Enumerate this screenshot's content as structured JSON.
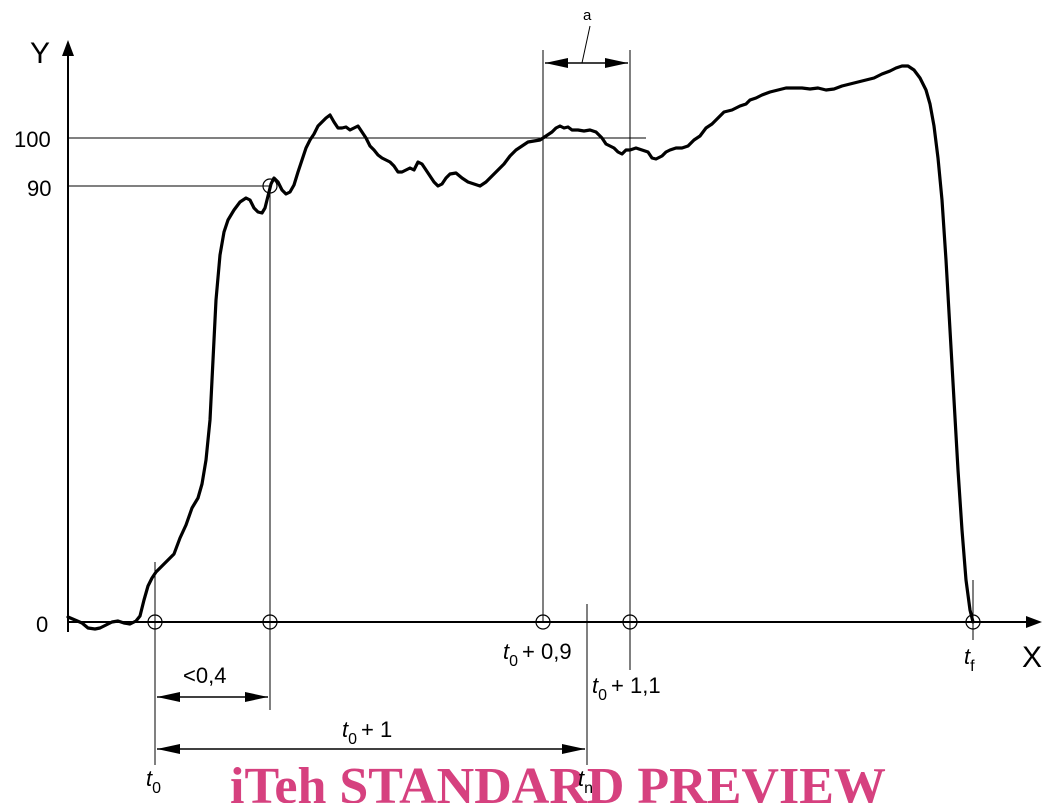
{
  "axes": {
    "y_label": "Y",
    "x_label": "X",
    "y_ticks": [
      "0",
      "90",
      "100"
    ]
  },
  "annotations": {
    "a": "a",
    "lt_0_4": "<0,4",
    "t0_plus_1": "+ 1",
    "t0_plus_0_9": "+ 0,9",
    "t0_plus_1_1": "+ 1,1"
  },
  "time_labels": {
    "t": "t",
    "sub_0": "0",
    "sub_n": "n",
    "sub_f": "f"
  },
  "watermark": "iTeh STANDARD PREVIEW",
  "colors": {
    "ink": "#000000",
    "watermark": "#d6417f",
    "background": "#ffffff"
  },
  "curve": {
    "description_points": [
      [
        0,
        0
      ],
      [
        0.05,
        -1
      ],
      [
        0.1,
        -2
      ],
      [
        0.2,
        0
      ],
      [
        0.3,
        0
      ],
      [
        0.35,
        2
      ],
      [
        0.4,
        10
      ],
      [
        0.45,
        13
      ],
      [
        0.5,
        17
      ],
      [
        0.55,
        24
      ],
      [
        0.6,
        30
      ],
      [
        0.66,
        41
      ],
      [
        0.72,
        62
      ],
      [
        0.78,
        80
      ],
      [
        0.84,
        86
      ],
      [
        0.9,
        88
      ],
      [
        0.94,
        84
      ],
      [
        1.0,
        84
      ],
      [
        1.04,
        92
      ],
      [
        1.08,
        89
      ],
      [
        1.12,
        89
      ],
      [
        1.16,
        97
      ],
      [
        1.2,
        103
      ],
      [
        1.25,
        106
      ],
      [
        1.32,
        104
      ],
      [
        1.38,
        105
      ],
      [
        1.44,
        97
      ],
      [
        1.52,
        92
      ],
      [
        1.58,
        93
      ],
      [
        1.62,
        94
      ],
      [
        1.66,
        90
      ],
      [
        1.72,
        91
      ],
      [
        1.78,
        88
      ],
      [
        1.84,
        91
      ],
      [
        1.92,
        89
      ],
      [
        2.0,
        94
      ],
      [
        2.08,
        99
      ],
      [
        2.12,
        100
      ],
      [
        2.2,
        103
      ],
      [
        2.3,
        102
      ],
      [
        2.38,
        99
      ],
      [
        2.44,
        97
      ],
      [
        2.5,
        98
      ],
      [
        2.56,
        96
      ],
      [
        2.62,
        98
      ],
      [
        2.68,
        98
      ],
      [
        2.76,
        103
      ],
      [
        2.84,
        107
      ],
      [
        2.92,
        108
      ],
      [
        3.0,
        112
      ],
      [
        3.08,
        114
      ],
      [
        3.2,
        115
      ],
      [
        3.3,
        115
      ],
      [
        3.4,
        116
      ],
      [
        3.5,
        118
      ],
      [
        3.58,
        120
      ],
      [
        3.64,
        121
      ],
      [
        3.68,
        120
      ],
      [
        3.72,
        115
      ],
      [
        3.76,
        100
      ],
      [
        3.8,
        75
      ],
      [
        3.84,
        40
      ],
      [
        3.88,
        0
      ]
    ]
  }
}
